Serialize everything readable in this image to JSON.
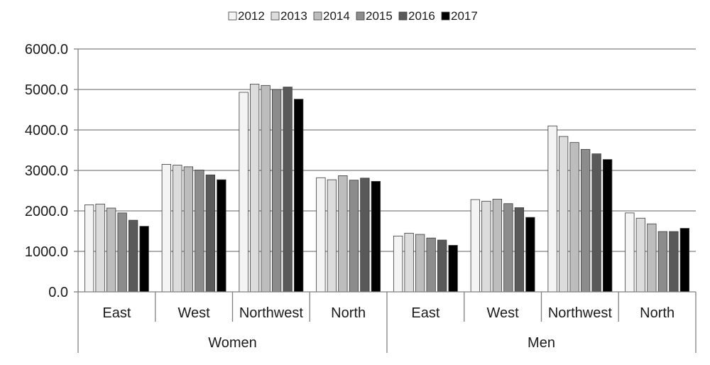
{
  "chart_data": {
    "type": "bar",
    "title": "",
    "xlabel": "",
    "ylabel": "",
    "ylim": [
      0,
      6000
    ],
    "y_ticks": [
      "0.0",
      "1000.0",
      "2000.0",
      "3000.0",
      "4000.0",
      "5000.0",
      "6000.0"
    ],
    "grid": true,
    "legend_position": "top-center",
    "groups": [
      "Women",
      "Men"
    ],
    "categories": [
      "East",
      "West",
      "Northwest",
      "North",
      "East",
      "West",
      "Northwest",
      "North"
    ],
    "series": [
      {
        "name": "2012",
        "color": "#f4f4f4",
        "values": [
          2150,
          3150,
          4930,
          2820,
          1380,
          2280,
          4100,
          1950
        ]
      },
      {
        "name": "2013",
        "color": "#dcdcdc",
        "values": [
          2170,
          3130,
          5130,
          2770,
          1450,
          2240,
          3840,
          1820
        ]
      },
      {
        "name": "2014",
        "color": "#bdbdbd",
        "values": [
          2070,
          3090,
          5100,
          2870,
          1420,
          2290,
          3690,
          1680
        ]
      },
      {
        "name": "2015",
        "color": "#8c8c8c",
        "values": [
          1950,
          3010,
          5000,
          2760,
          1330,
          2180,
          3520,
          1490
        ]
      },
      {
        "name": "2016",
        "color": "#595959",
        "values": [
          1770,
          2890,
          5060,
          2810,
          1280,
          2080,
          3410,
          1490
        ]
      },
      {
        "name": "2017",
        "color": "#000000",
        "values": [
          1620,
          2770,
          4760,
          2730,
          1150,
          1840,
          3270,
          1570
        ]
      }
    ]
  }
}
